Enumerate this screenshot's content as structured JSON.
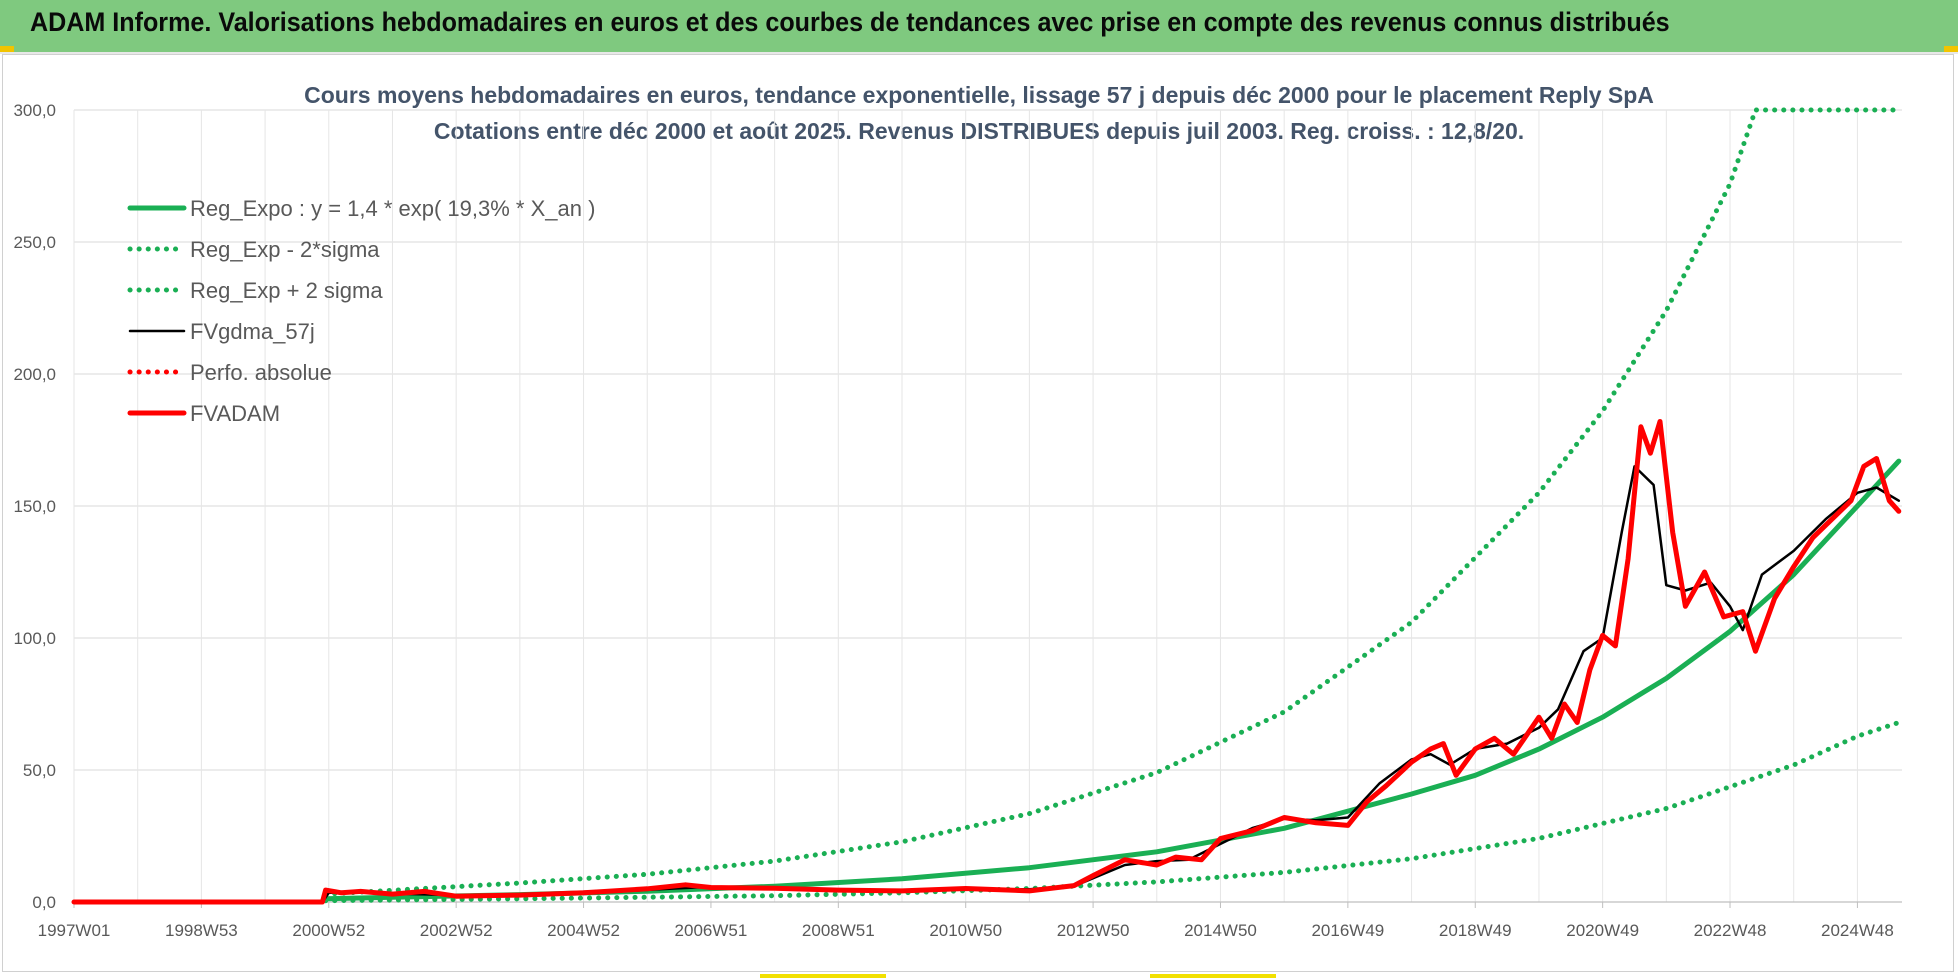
{
  "banner": {
    "title": "ADAM Informe. Valorisations hebdomadaires en euros et des courbes de tendances avec prise en compte des revenus connus distribués"
  },
  "colors": {
    "banner_bg": "#7fc97f",
    "regression": "#1aaf54",
    "gdma": "#000000",
    "adam": "#ff0000",
    "title_text": "#44546a"
  },
  "chart_data": {
    "type": "line",
    "title": "Cours moyens hebdomadaires en euros, tendance exponentielle, lissage 57 j depuis déc 2000 pour le placement Reply SpA",
    "subtitle": "Cotations entre déc 2000 et août 2025. Revenus DISTRIBUES depuis juil 2003. Reg. croiss. : 12,8/20.",
    "xlabel": "",
    "ylabel": "",
    "ylim": [
      0,
      300
    ],
    "xlim": [
      1997.0,
      2025.7
    ],
    "grid": true,
    "legend_position": "top-left",
    "y_ticks": [
      "0,0",
      "50,0",
      "100,0",
      "150,0",
      "200,0",
      "250,0",
      "300,0"
    ],
    "x_ticks": [
      "1997W01",
      "1998W53",
      "2000W52",
      "2002W52",
      "2004W52",
      "2006W51",
      "2008W51",
      "2010W50",
      "2012W50",
      "2014W50",
      "2016W49",
      "2018W49",
      "2020W49",
      "2022W48",
      "2024W48"
    ],
    "x_tick_positions": [
      1997.0,
      1999.0,
      2001.0,
      2003.0,
      2005.0,
      2007.0,
      2009.0,
      2011.0,
      2013.0,
      2015.0,
      2017.0,
      2019.0,
      2021.0,
      2023.0,
      2025.0
    ],
    "series": [
      {
        "name": "Reg_Expo : y = 1,4 * exp( 19,3% *  X_an )",
        "style": "solid-thick",
        "color": "#1aaf54",
        "x": [
          2000.95,
          2002,
          2004,
          2006,
          2008,
          2010,
          2012,
          2014,
          2016,
          2018,
          2019,
          2020,
          2021,
          2022,
          2023,
          2024,
          2025,
          2025.65
        ],
        "y": [
          1.2,
          1.8,
          2.8,
          4.1,
          6.0,
          8.8,
          13.0,
          19.0,
          27.9,
          40.9,
          48.0,
          57.9,
          70.0,
          84.7,
          102.5,
          124.0,
          150.0,
          167.0
        ]
      },
      {
        "name": "Reg_Exp - 2*sigma",
        "style": "dotted",
        "color": "#1aaf54",
        "x": [
          2000.95,
          2004,
          2008,
          2010,
          2012,
          2014,
          2016,
          2018,
          2020,
          2022,
          2024,
          2025,
          2025.65
        ],
        "y": [
          0.5,
          1.2,
          2.4,
          3.5,
          5.1,
          7.6,
          11.2,
          16.4,
          24.1,
          35.4,
          51.9,
          62.8,
          68.0
        ]
      },
      {
        "name": "Reg_Exp + 2 sigma",
        "style": "dotted",
        "color": "#1aaf54",
        "x": [
          2000.95,
          2004,
          2006,
          2008,
          2010,
          2012,
          2014,
          2016,
          2018,
          2020,
          2021,
          2022,
          2023,
          2023.4,
          2025.65
        ],
        "y": [
          3.0,
          7.2,
          10.5,
          15.5,
          22.8,
          33.5,
          49.0,
          72.0,
          106.0,
          155.0,
          186.0,
          224.0,
          272.0,
          300.0,
          300.0
        ]
      },
      {
        "name": "FVgdma_57j",
        "style": "solid",
        "color": "#000000",
        "x": [
          1997.0,
          2000.9,
          2001.0,
          2001.5,
          2002,
          2003,
          2004,
          2005,
          2006,
          2007,
          2008,
          2009,
          2010,
          2011,
          2012,
          2012.7,
          2013,
          2013.5,
          2014,
          2014.5,
          2015,
          2015.5,
          2016,
          2016.5,
          2017,
          2017.5,
          2018,
          2018.3,
          2018.6,
          2019,
          2019.5,
          2020,
          2020.3,
          2020.7,
          2021,
          2021.3,
          2021.5,
          2021.8,
          2022,
          2022.3,
          2022.7,
          2023,
          2023.2,
          2023.5,
          2024,
          2024.5,
          2025,
          2025.3,
          2025.65
        ],
        "y": [
          0,
          0,
          3.5,
          3.6,
          3.2,
          2.6,
          2.5,
          3.2,
          4.6,
          5.8,
          5.2,
          4.6,
          4.4,
          4.9,
          4.8,
          6.0,
          9.0,
          14.0,
          15.5,
          16.0,
          22.0,
          28.0,
          31.5,
          31.0,
          32.0,
          45.0,
          54.0,
          56.0,
          52.0,
          58.0,
          60.0,
          66.0,
          73.0,
          95.0,
          100.0,
          140.0,
          165.0,
          158.0,
          120.0,
          118.0,
          121.0,
          112.0,
          103.0,
          124.0,
          133.0,
          145.0,
          155.0,
          157.0,
          152.0
        ]
      },
      {
        "name": "Perfo. absolue",
        "style": "dotted",
        "color": "#ff0000",
        "x": [],
        "y": []
      },
      {
        "name": "FVADAM",
        "style": "solid-thick",
        "color": "#ff0000",
        "x": [
          1997.0,
          2000.9,
          2000.95,
          2001.2,
          2001.5,
          2002,
          2002.5,
          2003,
          2004,
          2005,
          2006,
          2006.6,
          2007,
          2008,
          2009,
          2010,
          2011,
          2012,
          2012.7,
          2013,
          2013.5,
          2014,
          2014.3,
          2014.7,
          2015,
          2015.5,
          2016,
          2016.5,
          2017,
          2017.3,
          2017.6,
          2018,
          2018.3,
          2018.5,
          2018.7,
          2019,
          2019.3,
          2019.6,
          2020,
          2020.2,
          2020.4,
          2020.6,
          2020.8,
          2021,
          2021.2,
          2021.4,
          2021.6,
          2021.75,
          2021.9,
          2022.1,
          2022.3,
          2022.6,
          2022.9,
          2023.2,
          2023.4,
          2023.7,
          2024,
          2024.3,
          2024.6,
          2024.9,
          2025.1,
          2025.3,
          2025.5,
          2025.65
        ],
        "y": [
          0,
          0,
          4.5,
          3.5,
          4.0,
          3.0,
          4.0,
          2.2,
          2.6,
          3.5,
          5.0,
          6.5,
          5.5,
          5.2,
          4.5,
          4.2,
          5.1,
          4.2,
          6.2,
          10.0,
          16.0,
          14.0,
          17.0,
          16.0,
          24.0,
          27.0,
          32.0,
          30.0,
          29.0,
          38.0,
          44.0,
          53.0,
          58.0,
          60.0,
          48.0,
          58.0,
          62.0,
          56.0,
          70.0,
          62.0,
          75.0,
          68.0,
          88.0,
          101.0,
          97.0,
          130.0,
          180.0,
          170.0,
          182.0,
          140.0,
          112.0,
          125.0,
          108.0,
          110.0,
          95.0,
          115.0,
          127.0,
          138.0,
          145.0,
          152.0,
          165.0,
          168.0,
          152.0,
          148.0
        ]
      }
    ]
  }
}
